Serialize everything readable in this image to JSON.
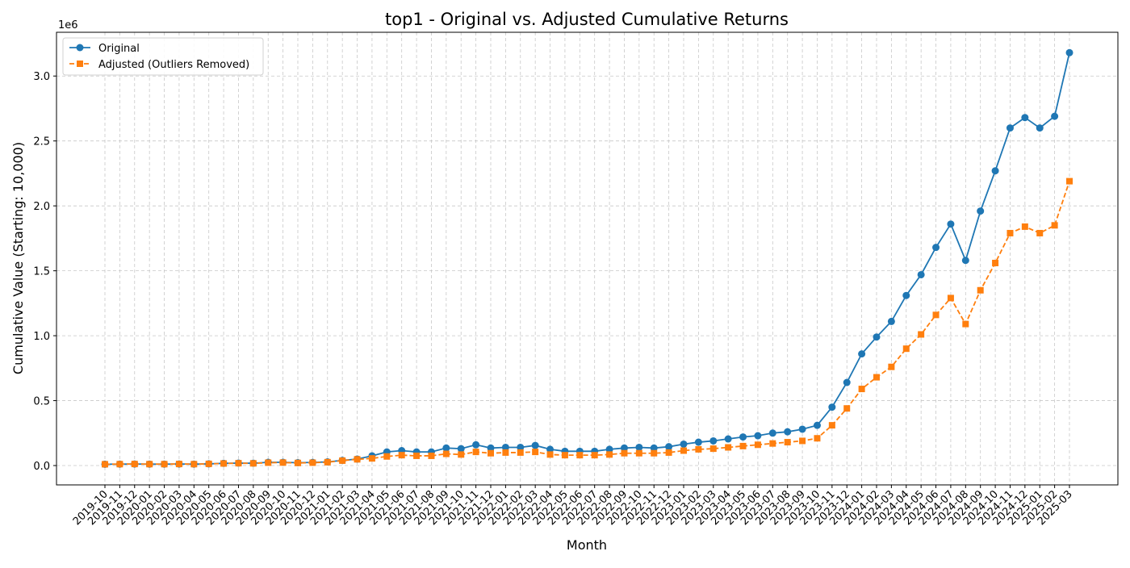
{
  "chart_data": {
    "type": "line",
    "title": "top1 - Original vs. Adjusted Cumulative Returns",
    "x_label": "Month",
    "y_label": "Cumulative Value (Starting: 10,000)",
    "y_offset_label": "1e6",
    "categories": [
      "2019-10",
      "2019-11",
      "2019-12",
      "2020-01",
      "2020-02",
      "2020-03",
      "2020-04",
      "2020-05",
      "2020-06",
      "2020-07",
      "2020-08",
      "2020-09",
      "2020-10",
      "2020-11",
      "2020-12",
      "2021-01",
      "2021-02",
      "2021-03",
      "2021-04",
      "2021-05",
      "2021-06",
      "2021-07",
      "2021-08",
      "2021-09",
      "2021-10",
      "2021-11",
      "2021-12",
      "2022-01",
      "2022-02",
      "2022-03",
      "2022-04",
      "2022-05",
      "2022-06",
      "2022-07",
      "2022-08",
      "2022-09",
      "2022-10",
      "2022-11",
      "2022-12",
      "2023-01",
      "2023-02",
      "2023-03",
      "2023-04",
      "2023-05",
      "2023-06",
      "2023-07",
      "2023-08",
      "2023-09",
      "2023-10",
      "2023-11",
      "2023-12",
      "2024-01",
      "2024-02",
      "2024-03",
      "2024-04",
      "2024-05",
      "2024-06",
      "2024-07",
      "2024-08",
      "2024-09",
      "2024-10",
      "2024-11",
      "2024-12",
      "2025-01",
      "2025-02",
      "2025-03"
    ],
    "series": [
      {
        "name": "Original",
        "color": "#1f77b4",
        "marker": "circle",
        "dash": false,
        "values": [
          0.01,
          0.011,
          0.012,
          0.011,
          0.011,
          0.012,
          0.011,
          0.013,
          0.017,
          0.019,
          0.018,
          0.025,
          0.025,
          0.022,
          0.024,
          0.028,
          0.04,
          0.05,
          0.075,
          0.105,
          0.115,
          0.105,
          0.105,
          0.135,
          0.13,
          0.16,
          0.135,
          0.14,
          0.14,
          0.155,
          0.125,
          0.11,
          0.11,
          0.11,
          0.125,
          0.135,
          0.14,
          0.135,
          0.145,
          0.165,
          0.18,
          0.19,
          0.205,
          0.22,
          0.23,
          0.25,
          0.26,
          0.28,
          0.31,
          0.45,
          0.64,
          0.86,
          0.99,
          1.11,
          1.31,
          1.47,
          1.68,
          1.86,
          1.58,
          1.96,
          2.27,
          2.6,
          2.68,
          2.6,
          2.69,
          3.18
        ]
      },
      {
        "name": "Adjusted (Outliers Removed)",
        "color": "#ff7f0e",
        "marker": "square",
        "dash": true,
        "values": [
          0.01,
          0.011,
          0.012,
          0.011,
          0.011,
          0.012,
          0.011,
          0.013,
          0.016,
          0.018,
          0.017,
          0.022,
          0.023,
          0.02,
          0.022,
          0.026,
          0.038,
          0.048,
          0.055,
          0.07,
          0.08,
          0.075,
          0.075,
          0.09,
          0.085,
          0.105,
          0.095,
          0.1,
          0.1,
          0.105,
          0.085,
          0.08,
          0.08,
          0.08,
          0.085,
          0.095,
          0.095,
          0.095,
          0.1,
          0.115,
          0.125,
          0.13,
          0.14,
          0.15,
          0.16,
          0.17,
          0.18,
          0.19,
          0.21,
          0.31,
          0.44,
          0.59,
          0.68,
          0.76,
          0.9,
          1.01,
          1.16,
          1.29,
          1.09,
          1.35,
          1.56,
          1.79,
          1.84,
          1.79,
          1.85,
          2.19
        ]
      }
    ],
    "ylim": [
      -0.149,
      3.337
    ],
    "yticks": [
      {
        "value": 0,
        "label": "0.0"
      },
      {
        "value": 0.5,
        "label": "0.5"
      },
      {
        "value": 1,
        "label": "1.0"
      },
      {
        "value": 1.5,
        "label": "1.5"
      },
      {
        "value": 2,
        "label": "2.0"
      },
      {
        "value": 2.5,
        "label": "2.5"
      },
      {
        "value": 3,
        "label": "3.0"
      }
    ],
    "grid": true,
    "legend": "upper left"
  }
}
